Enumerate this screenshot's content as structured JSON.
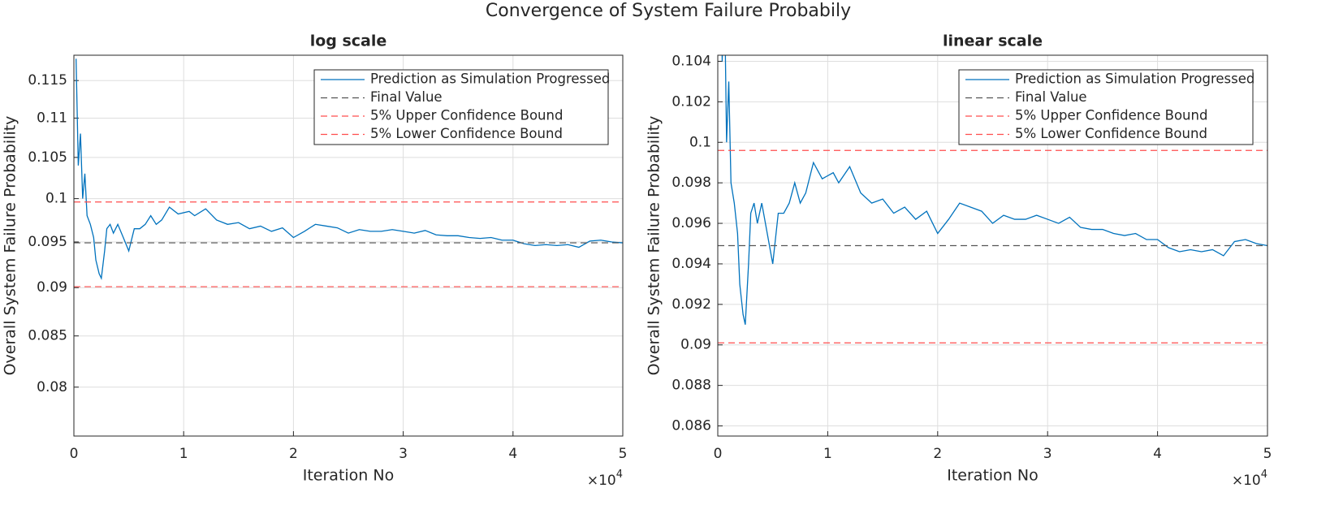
{
  "title": "Convergence of System Failure Probabily",
  "chart_data": [
    {
      "type": "line",
      "title": "log scale",
      "xlabel": "Iteration No",
      "ylabel": "Overall System Failure Probability",
      "log_y": true,
      "grid": true,
      "legend_position": "northeast",
      "x_multiplier_base": "×10",
      "x_multiplier_exponent": "4",
      "xlim": [
        0,
        50000
      ],
      "xticks": [
        {
          "value": 0,
          "label": "0"
        },
        {
          "value": 10000,
          "label": "1"
        },
        {
          "value": 20000,
          "label": "2"
        },
        {
          "value": 30000,
          "label": "3"
        },
        {
          "value": 40000,
          "label": "4"
        },
        {
          "value": 50000,
          "label": "5"
        }
      ],
      "ylim": [
        0.0755,
        0.1185
      ],
      "yticks": [
        0.08,
        0.085,
        0.09,
        0.095,
        0.1,
        0.105,
        0.11,
        0.115
      ],
      "series": [
        {
          "name": "Prediction as Simulation Progressed",
          "color": "#0072bd",
          "dash": "solid",
          "x": [
            200,
            400,
            600,
            800,
            1000,
            1200,
            1500,
            1800,
            2000,
            2300,
            2500,
            2800,
            3000,
            3300,
            3600,
            4000,
            4500,
            5000,
            5500,
            6000,
            6500,
            7000,
            7500,
            8000,
            8700,
            9500,
            10500,
            11000,
            12000,
            13000,
            14000,
            15000,
            16000,
            17000,
            18000,
            19000,
            20000,
            21000,
            22000,
            23000,
            24000,
            25000,
            26000,
            27000,
            28000,
            29000,
            30000,
            31000,
            32000,
            33000,
            34000,
            35000,
            36000,
            37000,
            38000,
            39000,
            40000,
            41000,
            42000,
            43000,
            44000,
            45000,
            46000,
            47000,
            48000,
            49000,
            50000
          ],
          "values": [
            0.118,
            0.104,
            0.108,
            0.1,
            0.103,
            0.098,
            0.097,
            0.0955,
            0.093,
            0.0915,
            0.091,
            0.094,
            0.0965,
            0.097,
            0.096,
            0.097,
            0.0955,
            0.094,
            0.0965,
            0.0965,
            0.097,
            0.098,
            0.097,
            0.0975,
            0.099,
            0.0982,
            0.0985,
            0.098,
            0.0988,
            0.0975,
            0.097,
            0.0972,
            0.0965,
            0.0968,
            0.0962,
            0.0966,
            0.0955,
            0.0962,
            0.097,
            0.0968,
            0.0966,
            0.096,
            0.0964,
            0.0962,
            0.0962,
            0.0964,
            0.0962,
            0.096,
            0.0963,
            0.0958,
            0.0957,
            0.0957,
            0.0955,
            0.0954,
            0.0955,
            0.0952,
            0.0952,
            0.0948,
            0.0946,
            0.0947,
            0.0946,
            0.0947,
            0.0944,
            0.0951,
            0.0952,
            0.095,
            0.0949
          ]
        },
        {
          "name": "Final Value",
          "color": "#555555",
          "dash": "dashed",
          "x": [
            0,
            50000
          ],
          "values": [
            0.0949,
            0.0949
          ]
        },
        {
          "name": "5% Upper Confidence Bound",
          "color": "#ff4d4d",
          "dash": "dashed",
          "x": [
            0,
            50000
          ],
          "values": [
            0.0996,
            0.0996
          ]
        },
        {
          "name": "5% Lower Confidence Bound",
          "color": "#ff4d4d",
          "dash": "dashed",
          "x": [
            0,
            50000
          ],
          "values": [
            0.0901,
            0.0901
          ]
        }
      ]
    },
    {
      "type": "line",
      "title": "linear scale",
      "xlabel": "Iteration No",
      "ylabel": "Overall System Failure Probability",
      "log_y": false,
      "grid": true,
      "legend_position": "northeast",
      "x_multiplier_base": "×10",
      "x_multiplier_exponent": "4",
      "xlim": [
        0,
        50000
      ],
      "xticks": [
        {
          "value": 0,
          "label": "0"
        },
        {
          "value": 10000,
          "label": "1"
        },
        {
          "value": 20000,
          "label": "2"
        },
        {
          "value": 30000,
          "label": "3"
        },
        {
          "value": 40000,
          "label": "4"
        },
        {
          "value": 50000,
          "label": "5"
        }
      ],
      "ylim": [
        0.0855,
        0.1043
      ],
      "yticks": [
        0.086,
        0.088,
        0.09,
        0.092,
        0.094,
        0.096,
        0.098,
        0.1,
        0.102,
        0.104
      ],
      "series": [
        {
          "name": "Prediction as Simulation Progressed",
          "color": "#0072bd",
          "dash": "solid",
          "x": [
            200,
            400,
            600,
            800,
            1000,
            1200,
            1500,
            1800,
            2000,
            2300,
            2500,
            2800,
            3000,
            3300,
            3600,
            4000,
            4500,
            5000,
            5500,
            6000,
            6500,
            7000,
            7500,
            8000,
            8700,
            9500,
            10500,
            11000,
            12000,
            13000,
            14000,
            15000,
            16000,
            17000,
            18000,
            19000,
            20000,
            21000,
            22000,
            23000,
            24000,
            25000,
            26000,
            27000,
            28000,
            29000,
            30000,
            31000,
            32000,
            33000,
            34000,
            35000,
            36000,
            37000,
            38000,
            39000,
            40000,
            41000,
            42000,
            43000,
            44000,
            45000,
            46000,
            47000,
            48000,
            49000,
            50000
          ],
          "values": [
            0.118,
            0.104,
            0.108,
            0.1,
            0.103,
            0.098,
            0.097,
            0.0955,
            0.093,
            0.0915,
            0.091,
            0.094,
            0.0965,
            0.097,
            0.096,
            0.097,
            0.0955,
            0.094,
            0.0965,
            0.0965,
            0.097,
            0.098,
            0.097,
            0.0975,
            0.099,
            0.0982,
            0.0985,
            0.098,
            0.0988,
            0.0975,
            0.097,
            0.0972,
            0.0965,
            0.0968,
            0.0962,
            0.0966,
            0.0955,
            0.0962,
            0.097,
            0.0968,
            0.0966,
            0.096,
            0.0964,
            0.0962,
            0.0962,
            0.0964,
            0.0962,
            0.096,
            0.0963,
            0.0958,
            0.0957,
            0.0957,
            0.0955,
            0.0954,
            0.0955,
            0.0952,
            0.0952,
            0.0948,
            0.0946,
            0.0947,
            0.0946,
            0.0947,
            0.0944,
            0.0951,
            0.0952,
            0.095,
            0.0949
          ]
        },
        {
          "name": "Final Value",
          "color": "#555555",
          "dash": "dashed",
          "x": [
            0,
            50000
          ],
          "values": [
            0.0949,
            0.0949
          ]
        },
        {
          "name": "5% Upper Confidence Bound",
          "color": "#ff4d4d",
          "dash": "dashed",
          "x": [
            0,
            50000
          ],
          "values": [
            0.0996,
            0.0996
          ]
        },
        {
          "name": "5% Lower Confidence Bound",
          "color": "#ff4d4d",
          "dash": "dashed",
          "x": [
            0,
            50000
          ],
          "values": [
            0.0901,
            0.0901
          ]
        }
      ]
    }
  ]
}
